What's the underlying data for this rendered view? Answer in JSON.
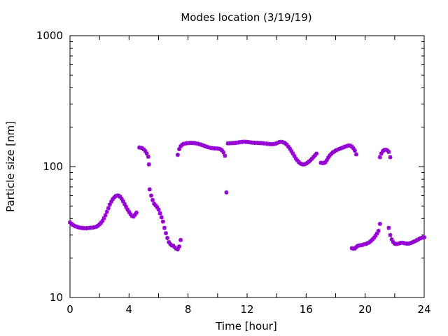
{
  "chart_data": {
    "type": "scatter",
    "title": "Modes location (3/19/19)",
    "xlabel": "Time [hour]",
    "ylabel": "Particle size [nm]",
    "xlim": [
      0,
      24
    ],
    "ylim": [
      10,
      1000
    ],
    "yscale": "log",
    "xticks": [
      0,
      4,
      8,
      12,
      16,
      20,
      24
    ],
    "yticks": [
      10,
      100,
      1000
    ],
    "ytick_labels": [
      "10",
      "100",
      "1000"
    ],
    "grid": false,
    "legend": "none",
    "marker_color": "#9400d3",
    "series": [
      {
        "points": [
          [
            0.0,
            37.5
          ],
          [
            0.1,
            36.5
          ],
          [
            0.2,
            35.8
          ],
          [
            0.3,
            35.3
          ],
          [
            0.4,
            34.9
          ],
          [
            0.5,
            34.6
          ],
          [
            0.6,
            34.3
          ],
          [
            0.7,
            34.1
          ],
          [
            0.8,
            34.0
          ],
          [
            0.9,
            33.9
          ],
          [
            1.0,
            33.8
          ],
          [
            1.1,
            33.8
          ],
          [
            1.2,
            33.9
          ],
          [
            1.3,
            34.0
          ],
          [
            1.4,
            34.1
          ],
          [
            1.5,
            34.2
          ],
          [
            1.6,
            34.3
          ],
          [
            1.7,
            34.5
          ],
          [
            1.8,
            34.8
          ],
          [
            1.9,
            35.4
          ],
          [
            2.0,
            36.2
          ],
          [
            2.1,
            37.2
          ],
          [
            2.2,
            38.5
          ],
          [
            2.3,
            40.3
          ],
          [
            2.4,
            42.5
          ],
          [
            2.5,
            45.2
          ],
          [
            2.6,
            48.2
          ],
          [
            2.7,
            51.3
          ],
          [
            2.8,
            54.0
          ],
          [
            2.9,
            56.4
          ],
          [
            3.0,
            58.2
          ],
          [
            3.1,
            59.5
          ],
          [
            3.2,
            60.2
          ],
          [
            3.3,
            60.0
          ],
          [
            3.4,
            58.8
          ],
          [
            3.5,
            56.8
          ],
          [
            3.6,
            54.3
          ],
          [
            3.7,
            51.7
          ],
          [
            3.8,
            49.2
          ],
          [
            3.9,
            47.0
          ],
          [
            4.0,
            45.0
          ],
          [
            4.1,
            43.3
          ],
          [
            4.2,
            42.0
          ],
          [
            4.3,
            41.5
          ],
          [
            4.4,
            42.8
          ],
          [
            4.5,
            44.5
          ],
          [
            4.7,
            140.0
          ],
          [
            4.8,
            139.5
          ],
          [
            4.9,
            138.0
          ],
          [
            5.0,
            135.5
          ],
          [
            5.1,
            131.5
          ],
          [
            5.2,
            126.0
          ],
          [
            5.3,
            119.0
          ],
          [
            5.35,
            104.0
          ],
          [
            5.4,
            67.0
          ],
          [
            5.5,
            60.0
          ],
          [
            5.6,
            55.5
          ],
          [
            5.7,
            52.0
          ],
          [
            5.8,
            50.5
          ],
          [
            5.9,
            49.0
          ],
          [
            6.0,
            47.0
          ],
          [
            6.1,
            44.0
          ],
          [
            6.2,
            41.0
          ],
          [
            6.3,
            38.0
          ],
          [
            6.4,
            34.0
          ],
          [
            6.5,
            31.0
          ],
          [
            6.6,
            28.5
          ],
          [
            6.7,
            26.5
          ],
          [
            6.8,
            25.5
          ],
          [
            6.9,
            25.0
          ],
          [
            7.0,
            24.8
          ],
          [
            7.1,
            24.2
          ],
          [
            7.2,
            23.6
          ],
          [
            7.3,
            23.3
          ],
          [
            7.4,
            24.5
          ],
          [
            7.5,
            27.5
          ],
          [
            7.3,
            123.0
          ],
          [
            7.4,
            136.0
          ],
          [
            7.5,
            143.0
          ],
          [
            7.6,
            147.0
          ],
          [
            7.7,
            149.0
          ],
          [
            7.8,
            150.0
          ],
          [
            7.9,
            150.8
          ],
          [
            8.0,
            151.3
          ],
          [
            8.1,
            151.6
          ],
          [
            8.2,
            151.7
          ],
          [
            8.3,
            151.6
          ],
          [
            8.4,
            151.3
          ],
          [
            8.5,
            150.8
          ],
          [
            8.6,
            150.1
          ],
          [
            8.7,
            149.2
          ],
          [
            8.8,
            148.1
          ],
          [
            8.9,
            146.8
          ],
          [
            9.0,
            145.4
          ],
          [
            9.1,
            144.0
          ],
          [
            9.2,
            142.6
          ],
          [
            9.3,
            141.3
          ],
          [
            9.4,
            140.2
          ],
          [
            9.5,
            139.3
          ],
          [
            9.6,
            138.6
          ],
          [
            9.7,
            138.1
          ],
          [
            9.8,
            137.8
          ],
          [
            9.9,
            137.6
          ],
          [
            10.0,
            137.4
          ],
          [
            10.1,
            136.9
          ],
          [
            10.2,
            135.5
          ],
          [
            10.3,
            133.0
          ],
          [
            10.4,
            128.5
          ],
          [
            10.5,
            121.0
          ],
          [
            10.6,
            63.5
          ],
          [
            10.7,
            150.5
          ],
          [
            10.8,
            150.8
          ],
          [
            10.9,
            151.0
          ],
          [
            11.0,
            151.2
          ],
          [
            11.1,
            151.5
          ],
          [
            11.2,
            151.8
          ],
          [
            11.3,
            152.3
          ],
          [
            11.4,
            152.9
          ],
          [
            11.5,
            153.6
          ],
          [
            11.6,
            154.2
          ],
          [
            11.7,
            154.6
          ],
          [
            11.8,
            154.8
          ],
          [
            11.9,
            154.7
          ],
          [
            12.0,
            154.3
          ],
          [
            12.1,
            153.8
          ],
          [
            12.2,
            153.2
          ],
          [
            12.3,
            152.7
          ],
          [
            12.4,
            152.3
          ],
          [
            12.5,
            152.0
          ],
          [
            12.6,
            151.8
          ],
          [
            12.7,
            151.7
          ],
          [
            12.8,
            151.6
          ],
          [
            12.9,
            151.4
          ],
          [
            13.0,
            151.1
          ],
          [
            13.1,
            150.7
          ],
          [
            13.2,
            150.2
          ],
          [
            13.3,
            149.7
          ],
          [
            13.4,
            149.2
          ],
          [
            13.5,
            148.8
          ],
          [
            13.6,
            148.5
          ],
          [
            13.7,
            148.4
          ],
          [
            13.8,
            148.6
          ],
          [
            13.9,
            149.3
          ],
          [
            14.0,
            150.8
          ],
          [
            14.1,
            152.6
          ],
          [
            14.2,
            154.0
          ],
          [
            14.3,
            154.5
          ],
          [
            14.4,
            154.0
          ],
          [
            14.5,
            152.5
          ],
          [
            14.6,
            150.0
          ],
          [
            14.7,
            146.5
          ],
          [
            14.8,
            142.0
          ],
          [
            14.9,
            137.0
          ],
          [
            15.0,
            131.5
          ],
          [
            15.1,
            126.0
          ],
          [
            15.2,
            120.5
          ],
          [
            15.3,
            115.5
          ],
          [
            15.4,
            111.5
          ],
          [
            15.5,
            108.3
          ],
          [
            15.6,
            106.0
          ],
          [
            15.7,
            104.5
          ],
          [
            15.8,
            103.8
          ],
          [
            15.9,
            104.2
          ],
          [
            16.0,
            105.5
          ],
          [
            16.1,
            107.3
          ],
          [
            16.2,
            109.5
          ],
          [
            16.3,
            112.0
          ],
          [
            16.4,
            115.0
          ],
          [
            16.5,
            118.5
          ],
          [
            16.6,
            122.0
          ],
          [
            16.7,
            125.5
          ],
          [
            17.0,
            107.0
          ],
          [
            17.1,
            106.5
          ],
          [
            17.2,
            106.5
          ],
          [
            17.3,
            108.0
          ],
          [
            17.4,
            112.0
          ],
          [
            17.5,
            117.0
          ],
          [
            17.6,
            121.5
          ],
          [
            17.7,
            125.0
          ],
          [
            17.8,
            128.0
          ],
          [
            17.9,
            130.5
          ],
          [
            18.0,
            132.5
          ],
          [
            18.1,
            134.2
          ],
          [
            18.2,
            135.8
          ],
          [
            18.3,
            137.2
          ],
          [
            18.4,
            138.6
          ],
          [
            18.5,
            140.0
          ],
          [
            18.6,
            141.4
          ],
          [
            18.7,
            142.8
          ],
          [
            18.8,
            144.2
          ],
          [
            18.9,
            145.0
          ],
          [
            19.0,
            144.5
          ],
          [
            19.1,
            142.0
          ],
          [
            19.2,
            138.0
          ],
          [
            19.3,
            132.5
          ],
          [
            19.4,
            124.0
          ],
          [
            19.1,
            23.8
          ],
          [
            19.2,
            23.6
          ],
          [
            19.3,
            23.7
          ],
          [
            19.4,
            24.3
          ],
          [
            19.5,
            24.8
          ],
          [
            19.6,
            25.0
          ],
          [
            19.7,
            25.1
          ],
          [
            19.8,
            25.2
          ],
          [
            19.9,
            25.4
          ],
          [
            20.0,
            25.6
          ],
          [
            20.1,
            25.8
          ],
          [
            20.2,
            26.1
          ],
          [
            20.3,
            26.5
          ],
          [
            20.4,
            27.1
          ],
          [
            20.5,
            27.8
          ],
          [
            20.6,
            28.6
          ],
          [
            20.7,
            29.6
          ],
          [
            20.8,
            30.8
          ],
          [
            20.9,
            32.3
          ],
          [
            21.0,
            36.5
          ],
          [
            21.0,
            118.0
          ],
          [
            21.1,
            126.0
          ],
          [
            21.2,
            131.5
          ],
          [
            21.3,
            134.0
          ],
          [
            21.4,
            134.5
          ],
          [
            21.5,
            133.0
          ],
          [
            21.6,
            129.5
          ],
          [
            21.7,
            118.0
          ],
          [
            21.6,
            34.0
          ],
          [
            21.7,
            30.0
          ],
          [
            21.8,
            27.8
          ],
          [
            21.9,
            26.5
          ],
          [
            22.0,
            25.8
          ],
          [
            22.1,
            25.6
          ],
          [
            22.2,
            25.7
          ],
          [
            22.3,
            25.9
          ],
          [
            22.4,
            26.1
          ],
          [
            22.5,
            26.2
          ],
          [
            22.6,
            26.1
          ],
          [
            22.7,
            25.9
          ],
          [
            22.8,
            25.8
          ],
          [
            22.9,
            25.8
          ],
          [
            23.0,
            25.9
          ],
          [
            23.1,
            26.1
          ],
          [
            23.2,
            26.4
          ],
          [
            23.3,
            26.7
          ],
          [
            23.4,
            27.0
          ],
          [
            23.5,
            27.4
          ],
          [
            23.6,
            27.8
          ],
          [
            23.7,
            28.2
          ],
          [
            23.8,
            28.5
          ],
          [
            23.9,
            28.7
          ],
          [
            24.0,
            28.8
          ]
        ]
      }
    ]
  }
}
